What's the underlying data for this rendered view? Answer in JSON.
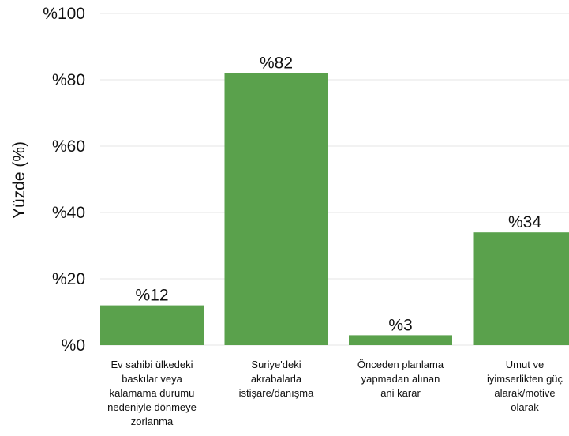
{
  "chart_data": {
    "type": "bar",
    "title": "",
    "xlabel": "",
    "ylabel": "Yüzde (%)",
    "ylim": [
      0,
      100
    ],
    "yticks": [
      0,
      20,
      40,
      60,
      80,
      100
    ],
    "ytick_labels": [
      "%0",
      "%20",
      "%40",
      "%60",
      "%80",
      "%100"
    ],
    "grid": true,
    "bar_color": "#5aa14c",
    "grid_color": "#e4e4e4",
    "categories": [
      [
        "Ev sahibi ülkedeki",
        "baskılar veya",
        "kalamama durumu",
        "nedeniyle dönmeye",
        "zorlanma"
      ],
      [
        "Suriye'deki",
        "akrabalarla",
        "istişare/danışma"
      ],
      [
        "Önceden planlama",
        "yapmadan alınan",
        "ani karar"
      ],
      [
        "Umut ve",
        "iyimserlikten güç",
        "alarak/motive",
        "olarak"
      ]
    ],
    "values": [
      12,
      82,
      3,
      34
    ],
    "value_labels": [
      "%12",
      "%82",
      "%3",
      "%34"
    ]
  }
}
